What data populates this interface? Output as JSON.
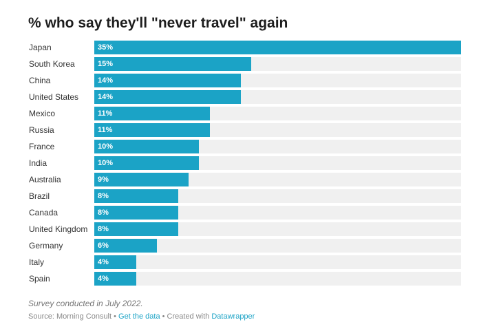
{
  "chart_data": {
    "type": "bar",
    "title": "% who say they'll \"never travel\" again",
    "categories": [
      "Japan",
      "South Korea",
      "China",
      "United States",
      "Mexico",
      "Russia",
      "France",
      "India",
      "Australia",
      "Brazil",
      "Canada",
      "United Kingdom",
      "Germany",
      "Italy",
      "Spain"
    ],
    "values": [
      35,
      15,
      14,
      14,
      11,
      11,
      10,
      10,
      9,
      8,
      8,
      8,
      6,
      4,
      4
    ],
    "value_labels": [
      "35%",
      "15%",
      "14%",
      "14%",
      "11%",
      "11%",
      "10%",
      "10%",
      "9%",
      "8%",
      "8%",
      "8%",
      "6%",
      "4%",
      "4%"
    ],
    "xlim": [
      0,
      35
    ],
    "xlabel": "",
    "ylabel": "",
    "bar_color": "#1ba3c6",
    "track_color": "#f0f0f0",
    "orientation": "horizontal",
    "grid": false
  },
  "footer": {
    "note": "Survey conducted in July 2022.",
    "source_prefix": "Source: Morning Consult • ",
    "get_data_link": "Get the data",
    "separator": " • Created with ",
    "tool_link": "Datawrapper"
  }
}
